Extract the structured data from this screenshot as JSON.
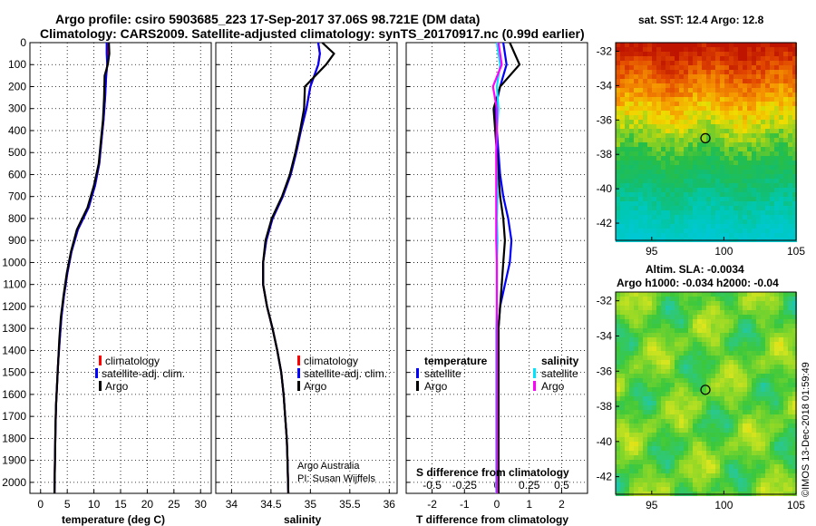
{
  "title": {
    "line1": "Argo profile: csiro 5903685_223 17-Sep-2017 37.06S 98.721E (DM data)",
    "line2": "Climatology: CARS2009. Satellite-adjusted climatology: synTS_20170917.nc (0.99d earlier)"
  },
  "colors": {
    "climatology": "#ff0000",
    "satellite": "#0000ff",
    "argo": "#000000",
    "sal_sat": "#00e5ff",
    "sal_argo": "#ff00ff"
  },
  "chart_data": [
    {
      "type": "line",
      "id": "temperature",
      "xlabel": "temperature (deg C)",
      "ylabel": "",
      "xlim": [
        -2,
        32
      ],
      "ylim": [
        2050,
        0
      ],
      "xticks": [
        0,
        5,
        10,
        15,
        20,
        25,
        30
      ],
      "xtick_labels": [
        "0",
        "5",
        "10",
        "15",
        "20",
        "25",
        "30"
      ],
      "yticks": [
        0,
        100,
        200,
        300,
        400,
        500,
        600,
        700,
        800,
        900,
        1000,
        1100,
        1200,
        1300,
        1400,
        1500,
        1600,
        1700,
        1800,
        1900,
        2000
      ],
      "yticks_labels": [
        "0",
        "100",
        "200",
        "300",
        "400",
        "500",
        "600",
        "700",
        "800",
        "900",
        "1000",
        "1100",
        "1200",
        "1300",
        "1400",
        "1500",
        "1600",
        "1700",
        "1800",
        "1900",
        "2000"
      ],
      "series": [
        {
          "name": "climatology",
          "color": "#ff0000",
          "x": [
            12.6,
            12.6,
            12.5,
            12.3,
            12.1,
            11.8,
            11.4,
            11.0,
            10.2,
            9.0,
            7.0,
            5.8,
            5.0,
            4.4,
            3.9,
            3.6,
            3.3,
            3.1,
            2.9,
            2.8,
            2.7,
            2.6
          ],
          "y": [
            0,
            50,
            100,
            150,
            250,
            350,
            450,
            550,
            650,
            750,
            850,
            950,
            1050,
            1150,
            1250,
            1350,
            1450,
            1550,
            1650,
            1750,
            1900,
            2050
          ]
        },
        {
          "name": "satellite",
          "color": "#0000ff",
          "x": [
            12.4,
            12.4,
            12.5,
            12.3,
            12.1,
            11.8,
            11.4,
            11.0,
            10.2,
            9.0,
            7.0,
            5.8,
            5.0,
            4.4,
            3.9,
            3.6,
            3.3,
            3.1,
            2.9,
            2.8,
            2.7,
            2.6
          ],
          "y": [
            0,
            50,
            100,
            150,
            250,
            350,
            450,
            550,
            650,
            750,
            850,
            950,
            1050,
            1150,
            1250,
            1350,
            1450,
            1550,
            1650,
            1750,
            1900,
            2050
          ]
        },
        {
          "name": "Argo",
          "color": "#000000",
          "x": [
            12.8,
            12.9,
            12.6,
            12.0,
            11.9,
            11.7,
            11.3,
            10.9,
            10.0,
            8.8,
            6.8,
            5.7,
            4.9,
            4.3,
            3.8,
            3.5,
            3.3,
            3.1,
            2.9,
            2.8,
            2.7,
            2.6
          ],
          "y": [
            0,
            50,
            100,
            150,
            250,
            350,
            450,
            550,
            650,
            750,
            850,
            950,
            1050,
            1150,
            1250,
            1350,
            1450,
            1550,
            1650,
            1750,
            1900,
            2050
          ]
        }
      ],
      "legend": [
        "climatology",
        "satellite-adj. clim.",
        "Argo"
      ]
    },
    {
      "type": "line",
      "id": "salinity",
      "xlabel": "salinity",
      "xlim": [
        33.8,
        36.1
      ],
      "ylim": [
        2050,
        0
      ],
      "xticks": [
        34,
        34.5,
        35,
        35.5,
        36
      ],
      "xtick_labels": [
        "34",
        "34.5",
        "35",
        "35.5",
        "36"
      ],
      "series": [
        {
          "name": "climatology",
          "color": "#ff0000",
          "x": [
            35.1,
            35.12,
            35.1,
            35.0,
            34.95,
            34.88,
            34.82,
            34.75,
            34.65,
            34.52,
            34.44,
            34.4,
            34.4,
            34.45,
            34.52,
            34.58,
            34.63,
            34.66,
            34.68,
            34.7,
            34.71,
            34.72
          ],
          "y": [
            0,
            50,
            100,
            200,
            300,
            400,
            500,
            600,
            700,
            800,
            900,
            1000,
            1100,
            1200,
            1300,
            1400,
            1500,
            1600,
            1700,
            1800,
            1900,
            2050
          ]
        },
        {
          "name": "satellite",
          "color": "#0000ff",
          "x": [
            35.1,
            35.12,
            35.1,
            35.0,
            34.95,
            34.88,
            34.82,
            34.75,
            34.65,
            34.52,
            34.44,
            34.4,
            34.4,
            34.45,
            34.52,
            34.58,
            34.63,
            34.66,
            34.68,
            34.7,
            34.71,
            34.72
          ],
          "y": [
            0,
            50,
            100,
            200,
            300,
            400,
            500,
            600,
            700,
            800,
            900,
            1000,
            1100,
            1200,
            1300,
            1400,
            1500,
            1600,
            1700,
            1800,
            1900,
            2050
          ]
        },
        {
          "name": "Argo",
          "color": "#000000",
          "x": [
            35.15,
            35.3,
            35.2,
            34.93,
            34.92,
            34.87,
            34.81,
            34.74,
            34.64,
            34.51,
            34.43,
            34.4,
            34.4,
            34.45,
            34.52,
            34.58,
            34.63,
            34.66,
            34.68,
            34.7,
            34.71,
            34.72
          ],
          "y": [
            0,
            50,
            100,
            200,
            300,
            400,
            500,
            600,
            700,
            800,
            900,
            1000,
            1100,
            1200,
            1300,
            1400,
            1500,
            1600,
            1700,
            1800,
            1900,
            2050
          ]
        }
      ],
      "legend": [
        "climatology",
        "satellite-adj. clim.",
        "Argo"
      ],
      "credit": [
        "Argo Australia",
        "PI: Susan Wijffels"
      ]
    },
    {
      "type": "line",
      "id": "difference",
      "xlabel": "T difference from climatology",
      "xlabel_top": "S difference from climatology",
      "xlim": [
        -2.8,
        2.8
      ],
      "ylim": [
        2050,
        0
      ],
      "xticks": [
        -2,
        -1,
        0,
        1,
        2
      ],
      "xtick_labels": [
        "-2",
        "-1",
        "0",
        "1",
        "2"
      ],
      "sticks": [
        -0.5,
        -0.25,
        0,
        0.25,
        0.5
      ],
      "stick_labels": [
        "-0.5",
        "-0.25",
        "0",
        "0.25",
        "0.5"
      ],
      "series": [
        {
          "name": "T satellite",
          "color": "#0000ff",
          "x": [
            0.2,
            0.3,
            0.1,
            -0.05,
            0.0,
            0.05,
            0.1,
            0.2,
            0.35,
            0.45,
            0.4,
            0.25,
            0.1,
            0.05,
            0.05,
            0.05,
            0.05,
            0.05,
            0.05,
            0.05,
            0.05
          ],
          "y": [
            0,
            100,
            200,
            300,
            400,
            500,
            600,
            700,
            800,
            900,
            1000,
            1100,
            1200,
            1300,
            1400,
            1500,
            1600,
            1700,
            1800,
            1900,
            2050
          ]
        },
        {
          "name": "T Argo",
          "color": "#000000",
          "x": [
            0.4,
            0.7,
            0.1,
            -0.1,
            -0.05,
            0.0,
            0.05,
            0.1,
            0.2,
            0.25,
            0.2,
            0.15,
            0.1,
            0.05,
            0.05,
            0.05,
            0.05,
            0.05,
            0.05,
            0.05,
            0.05
          ],
          "y": [
            0,
            100,
            200,
            300,
            400,
            500,
            600,
            700,
            800,
            900,
            1000,
            1100,
            1200,
            1300,
            1400,
            1500,
            1600,
            1700,
            1800,
            1900,
            2050
          ]
        },
        {
          "name": "S satellite",
          "color": "#00e5ff",
          "x": [
            0.0,
            0.1,
            0.0,
            0.05,
            0.0,
            -0.02,
            0.0,
            0.02,
            0.0,
            0.02,
            0.0,
            0.0,
            0.0,
            -0.02,
            -0.02,
            -0.02,
            -0.02,
            -0.02,
            -0.02,
            -0.02,
            -0.02
          ],
          "y": [
            0,
            100,
            200,
            300,
            400,
            500,
            600,
            700,
            800,
            900,
            1000,
            1100,
            1200,
            1300,
            1400,
            1500,
            1600,
            1700,
            1800,
            1900,
            2050
          ]
        },
        {
          "name": "S Argo",
          "color": "#ff00ff",
          "x": [
            0.05,
            0.15,
            -0.12,
            0.0,
            0.0,
            -0.02,
            -0.02,
            -0.02,
            -0.02,
            -0.02,
            0.0,
            0.0,
            0.0,
            0.0,
            0.0,
            0.0,
            0.0,
            0.0,
            0.0,
            0.0,
            0.0
          ],
          "y": [
            0,
            100,
            200,
            300,
            400,
            500,
            600,
            700,
            800,
            900,
            1000,
            1100,
            1200,
            1300,
            1400,
            1500,
            1600,
            1700,
            1800,
            1900,
            2050
          ]
        }
      ],
      "legend_temperature": {
        "title": "temperature",
        "items": [
          "satellite",
          "Argo"
        ]
      },
      "legend_salinity": {
        "title": "salinity",
        "items": [
          "satellite",
          "Argo"
        ]
      }
    },
    {
      "type": "heatmap",
      "id": "sst_map",
      "title": "sat. SST: 12.4 Argo: 12.8",
      "xticks": [
        95,
        100,
        105
      ],
      "xtick_labels": [
        "95",
        "100",
        "105"
      ],
      "yticks": [
        -32,
        -34,
        -36,
        -38,
        -40,
        -42
      ],
      "ytick_labels": [
        "-32",
        "-34",
        "-36",
        "-38",
        "-40",
        "-42"
      ],
      "xlim": [
        92.5,
        105
      ],
      "ylim": [
        -43,
        -31.5
      ],
      "marker": {
        "lon": 98.721,
        "lat": -37.06
      }
    },
    {
      "type": "heatmap",
      "id": "sla_map",
      "title": "Altim. SLA: -0.0034",
      "subtitle": "Argo h1000: -0.034 h2000: -0.04",
      "xticks": [
        95,
        100,
        105
      ],
      "xtick_labels": [
        "95",
        "100",
        "105"
      ],
      "yticks": [
        -32,
        -34,
        -36,
        -38,
        -40,
        -42
      ],
      "ytick_labels": [
        "-32",
        "-34",
        "-36",
        "-38",
        "-40",
        "-42"
      ],
      "xlim": [
        92.5,
        105
      ],
      "ylim": [
        -43,
        -31.5
      ],
      "marker": {
        "lon": 98.721,
        "lat": -37.06
      }
    }
  ],
  "credit_side": "©IMOS 13-Dec-2018 01:59:49"
}
